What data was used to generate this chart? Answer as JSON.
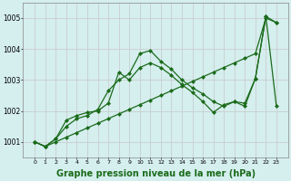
{
  "xlabel": "Graphe pression niveau de la mer (hPa)",
  "x": [
    0,
    1,
    2,
    3,
    4,
    5,
    6,
    7,
    8,
    9,
    10,
    11,
    12,
    13,
    14,
    15,
    16,
    17,
    18,
    19,
    20,
    21,
    22,
    23
  ],
  "line1": [
    1001.0,
    1000.85,
    1001.0,
    1001.15,
    1001.3,
    1001.45,
    1001.6,
    1001.75,
    1001.9,
    1002.05,
    1002.2,
    1002.35,
    1002.5,
    1002.65,
    1002.8,
    1002.95,
    1003.1,
    1003.25,
    1003.4,
    1003.55,
    1003.7,
    1003.85,
    1005.0,
    1004.85
  ],
  "line2": [
    1001.0,
    1000.85,
    1001.1,
    1001.5,
    1001.75,
    1001.85,
    1002.05,
    1002.65,
    1003.0,
    1003.2,
    1003.85,
    1003.95,
    1003.6,
    1003.35,
    1003.0,
    1002.75,
    1002.55,
    1002.3,
    1002.15,
    1002.3,
    1002.25,
    1003.05,
    1005.05,
    1002.15
  ],
  "line3": [
    1001.0,
    1000.85,
    1001.1,
    1001.7,
    1001.85,
    1001.95,
    1002.0,
    1002.25,
    1003.25,
    1003.0,
    1003.4,
    1003.55,
    1003.4,
    1003.15,
    1002.85,
    1002.6,
    1002.3,
    1001.95,
    1002.2,
    1002.3,
    1002.15,
    1003.05,
    1005.05,
    1004.85
  ],
  "line_color": "#1a6b1a",
  "background_color": "#d5eeee",
  "grid_color": "#c8c8c8",
  "ylim": [
    1000.5,
    1005.5
  ],
  "yticks": [
    1001,
    1002,
    1003,
    1004,
    1005
  ],
  "xlabel_fontsize": 7,
  "marker": "D",
  "markersize": 2,
  "linewidth": 0.9
}
